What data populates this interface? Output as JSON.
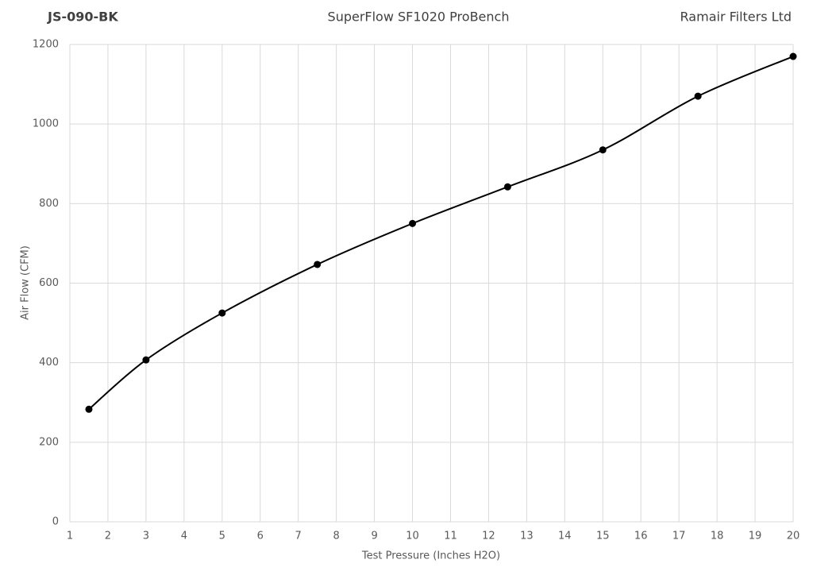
{
  "chart_data": {
    "type": "line",
    "title": "SuperFlow SF1020 ProBench",
    "header_left": "JS-090-BK",
    "header_right": "Ramair Filters Ltd",
    "x_label": "Test Pressure (Inches H2O)",
    "y_label": "Air Flow (CFM)",
    "x": [
      1.5,
      3,
      5,
      7.5,
      10,
      12.5,
      15,
      17.5,
      20
    ],
    "values": [
      283,
      407,
      525,
      647,
      750,
      842,
      935,
      1070,
      1170
    ],
    "color": "#000000",
    "smooth": true,
    "markers": true,
    "xlim": [
      1,
      20
    ],
    "xticks": [
      1,
      2,
      3,
      4,
      5,
      6,
      7,
      8,
      9,
      10,
      11,
      12,
      13,
      14,
      15,
      16,
      17,
      18,
      19,
      20
    ],
    "ylim": [
      0,
      1200
    ],
    "yticks": [
      0,
      200,
      400,
      600,
      800,
      1000,
      1200
    ],
    "grid": true
  }
}
